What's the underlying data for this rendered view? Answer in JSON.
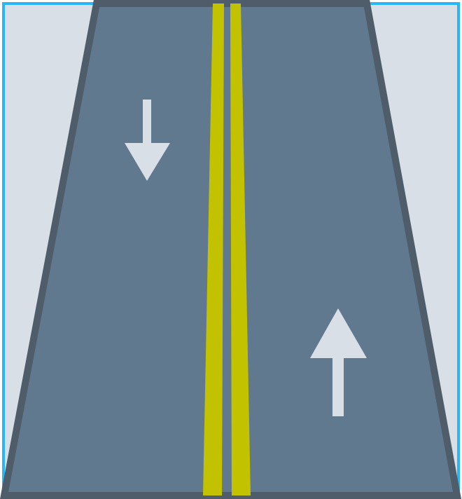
{
  "scene": {
    "name": "two-way-road-icon",
    "colors": {
      "frame_border": "#29b6f6",
      "background": "#d9dfe6",
      "road_surface": "#61798f",
      "road_edge": "#4e5d69",
      "center_line": "#c3c200",
      "arrow": "#d9dfe6"
    },
    "lanes": [
      {
        "name": "left-lane",
        "direction": "down",
        "arrow_icon": "arrow-down-icon"
      },
      {
        "name": "right-lane",
        "direction": "up",
        "arrow_icon": "arrow-up-icon"
      }
    ],
    "center_line": {
      "style": "double-solid",
      "icon": "double-yellow-line"
    }
  }
}
